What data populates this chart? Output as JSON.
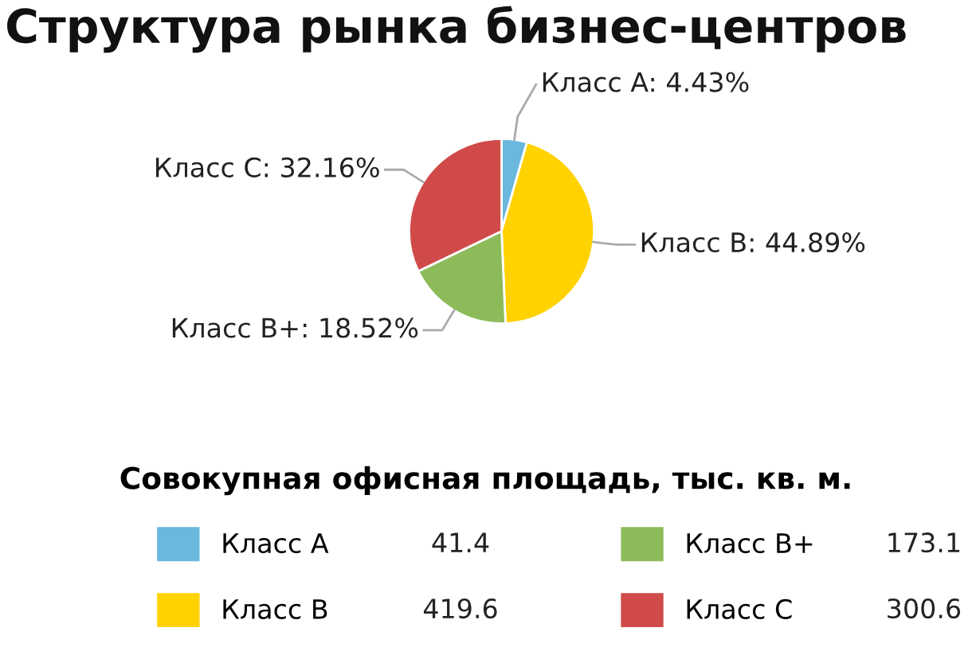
{
  "chart_data": {
    "type": "pie",
    "title": "Структура рынка бизнес-центров",
    "legend_title": "Совокупная офисная площадь, тыс. кв. м.",
    "legend": "bottom",
    "annotations": [
      "41.4",
      "419.6",
      "173.1",
      "300.6"
    ],
    "categories": [
      "Класс A",
      "Класс B",
      "Класс B+",
      "Класс C"
    ],
    "values": [
      4.43,
      44.89,
      18.52,
      32.16
    ],
    "value_labels": [
      "Класс A: 4.43%",
      "Класс B: 44.89%",
      "Класс B+: 18.52%",
      "Класс C: 32.16%"
    ],
    "colors": [
      "#6bb8de",
      "#ffd200",
      "#8dbb5a",
      "#d04a4a"
    ]
  }
}
